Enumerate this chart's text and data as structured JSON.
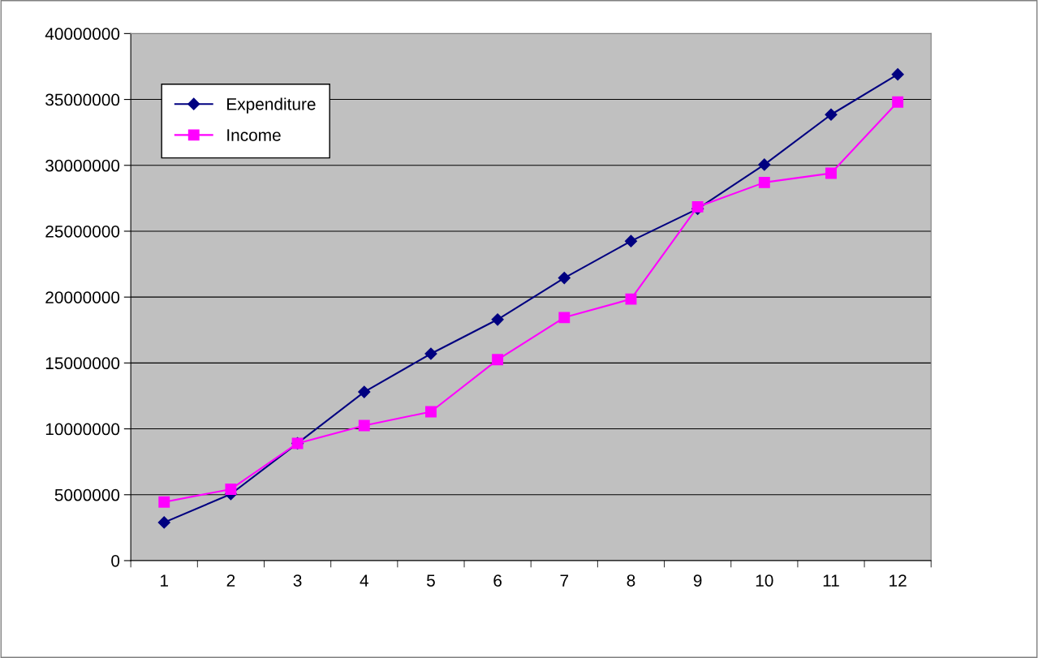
{
  "chart_data": {
    "type": "line",
    "categories": [
      "1",
      "2",
      "3",
      "4",
      "5",
      "6",
      "7",
      "8",
      "9",
      "10",
      "11",
      "12"
    ],
    "series": [
      {
        "name": "Expenditure",
        "color": "#000080",
        "marker": "diamond",
        "values": [
          2900000,
          5050000,
          8900000,
          12800000,
          15700000,
          18300000,
          21450000,
          24250000,
          26700000,
          30050000,
          33850000,
          36900000
        ]
      },
      {
        "name": "Income",
        "color": "#ff00ff",
        "marker": "square",
        "values": [
          4450000,
          5420000,
          8900000,
          10250000,
          11300000,
          15250000,
          18450000,
          19850000,
          26850000,
          28700000,
          29400000,
          34800000
        ]
      }
    ],
    "ylim": [
      0,
      40000000
    ],
    "yticks": [
      0,
      5000000,
      10000000,
      15000000,
      20000000,
      25000000,
      30000000,
      35000000,
      40000000
    ],
    "grid": "y",
    "legend": "top left"
  }
}
